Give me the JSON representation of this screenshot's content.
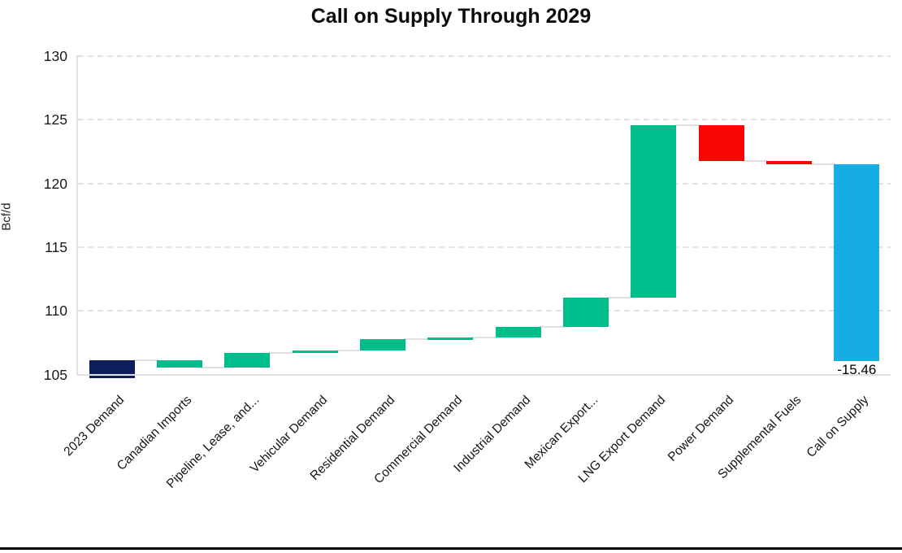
{
  "chart_data": {
    "type": "waterfall-bar",
    "title": "Call on Supply Through 2029",
    "ylabel": "Bcf/d",
    "ylim": [
      105,
      130
    ],
    "yticks": [
      105,
      110,
      115,
      120,
      125,
      130
    ],
    "grid": "horizontal dashed, light gray; solid light baseline at 105; left spine only",
    "legend": "none",
    "x_label_rotation_deg": 45,
    "annotation_label": "-15.46",
    "colors": {
      "navy_total": "#0D1E5A",
      "green_increase": "#00BE8C",
      "red_decrease": "#FA0505",
      "blue_final": "#16ACE4",
      "gridline": "#E3E3E3",
      "connector": "#E0E0E0",
      "text": "#111111"
    },
    "categories": [
      "2023 Demand",
      "Canadian Imports",
      "Pipeline, Lease, and...",
      "Vehicular Demand",
      "Residential Demand",
      "Commercial Demand",
      "Industrial Demand",
      "Mexican Export...",
      "LNG Export Demand",
      "Power Demand",
      "Supplemental Fuels",
      "Call on Supply"
    ],
    "bars": [
      {
        "label": "2023 Demand",
        "kind": "total",
        "start": 104.7,
        "end": 106.15,
        "delta": null,
        "color_key": "navy_total"
      },
      {
        "label": "Canadian Imports",
        "kind": "change",
        "start": 106.15,
        "end": 105.55,
        "delta": -0.6,
        "color_key": "green_increase"
      },
      {
        "label": "Pipeline, Lease, and...",
        "kind": "change",
        "start": 105.55,
        "end": 106.7,
        "delta": 1.15,
        "color_key": "green_increase"
      },
      {
        "label": "Vehicular Demand",
        "kind": "change",
        "start": 106.7,
        "end": 106.88,
        "delta": 0.18,
        "color_key": "green_increase"
      },
      {
        "label": "Residential Demand",
        "kind": "change",
        "start": 106.88,
        "end": 107.76,
        "delta": 0.88,
        "color_key": "green_increase"
      },
      {
        "label": "Commercial Demand",
        "kind": "change",
        "start": 107.76,
        "end": 107.9,
        "delta": 0.14,
        "color_key": "green_increase"
      },
      {
        "label": "Industrial Demand",
        "kind": "change",
        "start": 107.9,
        "end": 108.73,
        "delta": 0.83,
        "color_key": "green_increase"
      },
      {
        "label": "Mexican Export...",
        "kind": "change",
        "start": 108.73,
        "end": 111.01,
        "delta": 2.28,
        "color_key": "green_increase"
      },
      {
        "label": "LNG Export Demand",
        "kind": "change",
        "start": 111.01,
        "end": 124.56,
        "delta": 13.55,
        "color_key": "green_increase"
      },
      {
        "label": "Power Demand",
        "kind": "change",
        "start": 124.56,
        "end": 121.77,
        "delta": -2.79,
        "color_key": "red_decrease"
      },
      {
        "label": "Supplemental Fuels",
        "kind": "change",
        "start": 121.77,
        "end": 121.5,
        "delta": -0.27,
        "color_key": "red_decrease"
      },
      {
        "label": "Call on Supply",
        "kind": "final",
        "start": 121.5,
        "end": 106.04,
        "delta": -15.46,
        "color_key": "blue_final",
        "data_label": "-15.46"
      }
    ]
  }
}
